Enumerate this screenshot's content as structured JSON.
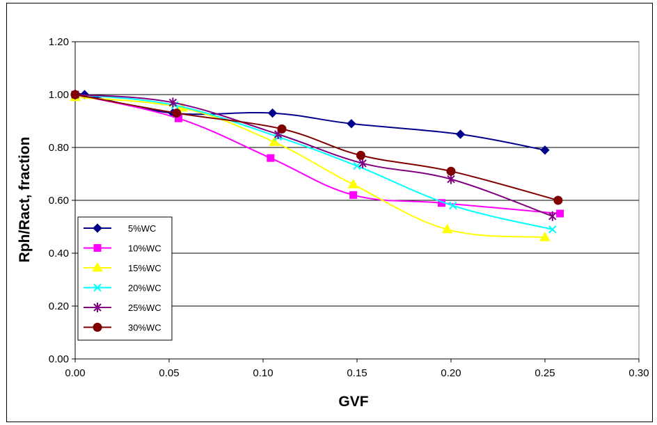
{
  "chart_data": {
    "type": "line",
    "title": "",
    "xlabel": "GVF",
    "ylabel": "Rph/Ract, fraction",
    "xlim": [
      0.0,
      0.3
    ],
    "ylim": [
      0.0,
      1.2
    ],
    "x_ticks": [
      "0.00",
      "0.05",
      "0.10",
      "0.15",
      "0.20",
      "0.25",
      "0.30"
    ],
    "y_ticks": [
      "0.00",
      "0.20",
      "0.40",
      "0.60",
      "0.80",
      "1.00",
      "1.20"
    ],
    "grid": "horizontal",
    "legend_position": "bottom-left",
    "series": [
      {
        "name": "5%WC",
        "color": "#00008B",
        "marker": "diamond",
        "x": [
          0.0,
          0.005,
          0.052,
          0.105,
          0.147,
          0.205,
          0.25
        ],
        "y": [
          1.0,
          1.0,
          0.93,
          0.93,
          0.89,
          0.85,
          0.79
        ]
      },
      {
        "name": "10%WC",
        "color": "#FF00FF",
        "marker": "square",
        "x": [
          0.0,
          0.055,
          0.104,
          0.148,
          0.195,
          0.258
        ],
        "y": [
          1.0,
          0.91,
          0.76,
          0.62,
          0.59,
          0.55
        ]
      },
      {
        "name": "15%WC",
        "color": "#FFFF00",
        "marker": "triangle",
        "x": [
          0.0,
          0.057,
          0.106,
          0.148,
          0.198,
          0.25
        ],
        "y": [
          0.99,
          0.95,
          0.82,
          0.66,
          0.49,
          0.46
        ]
      },
      {
        "name": "20%WC",
        "color": "#00FFFF",
        "marker": "x",
        "x": [
          0.0,
          0.053,
          0.108,
          0.15,
          0.201,
          0.254
        ],
        "y": [
          1.0,
          0.96,
          0.84,
          0.73,
          0.58,
          0.49
        ]
      },
      {
        "name": "25%WC",
        "color": "#800080",
        "marker": "star",
        "x": [
          0.0,
          0.052,
          0.108,
          0.153,
          0.2,
          0.254
        ],
        "y": [
          1.0,
          0.97,
          0.85,
          0.74,
          0.68,
          0.54
        ]
      },
      {
        "name": "30%WC",
        "color": "#800000",
        "marker": "circle",
        "x": [
          0.0,
          0.054,
          0.11,
          0.152,
          0.2,
          0.257
        ],
        "y": [
          1.0,
          0.93,
          0.87,
          0.77,
          0.71,
          0.6
        ]
      }
    ]
  }
}
